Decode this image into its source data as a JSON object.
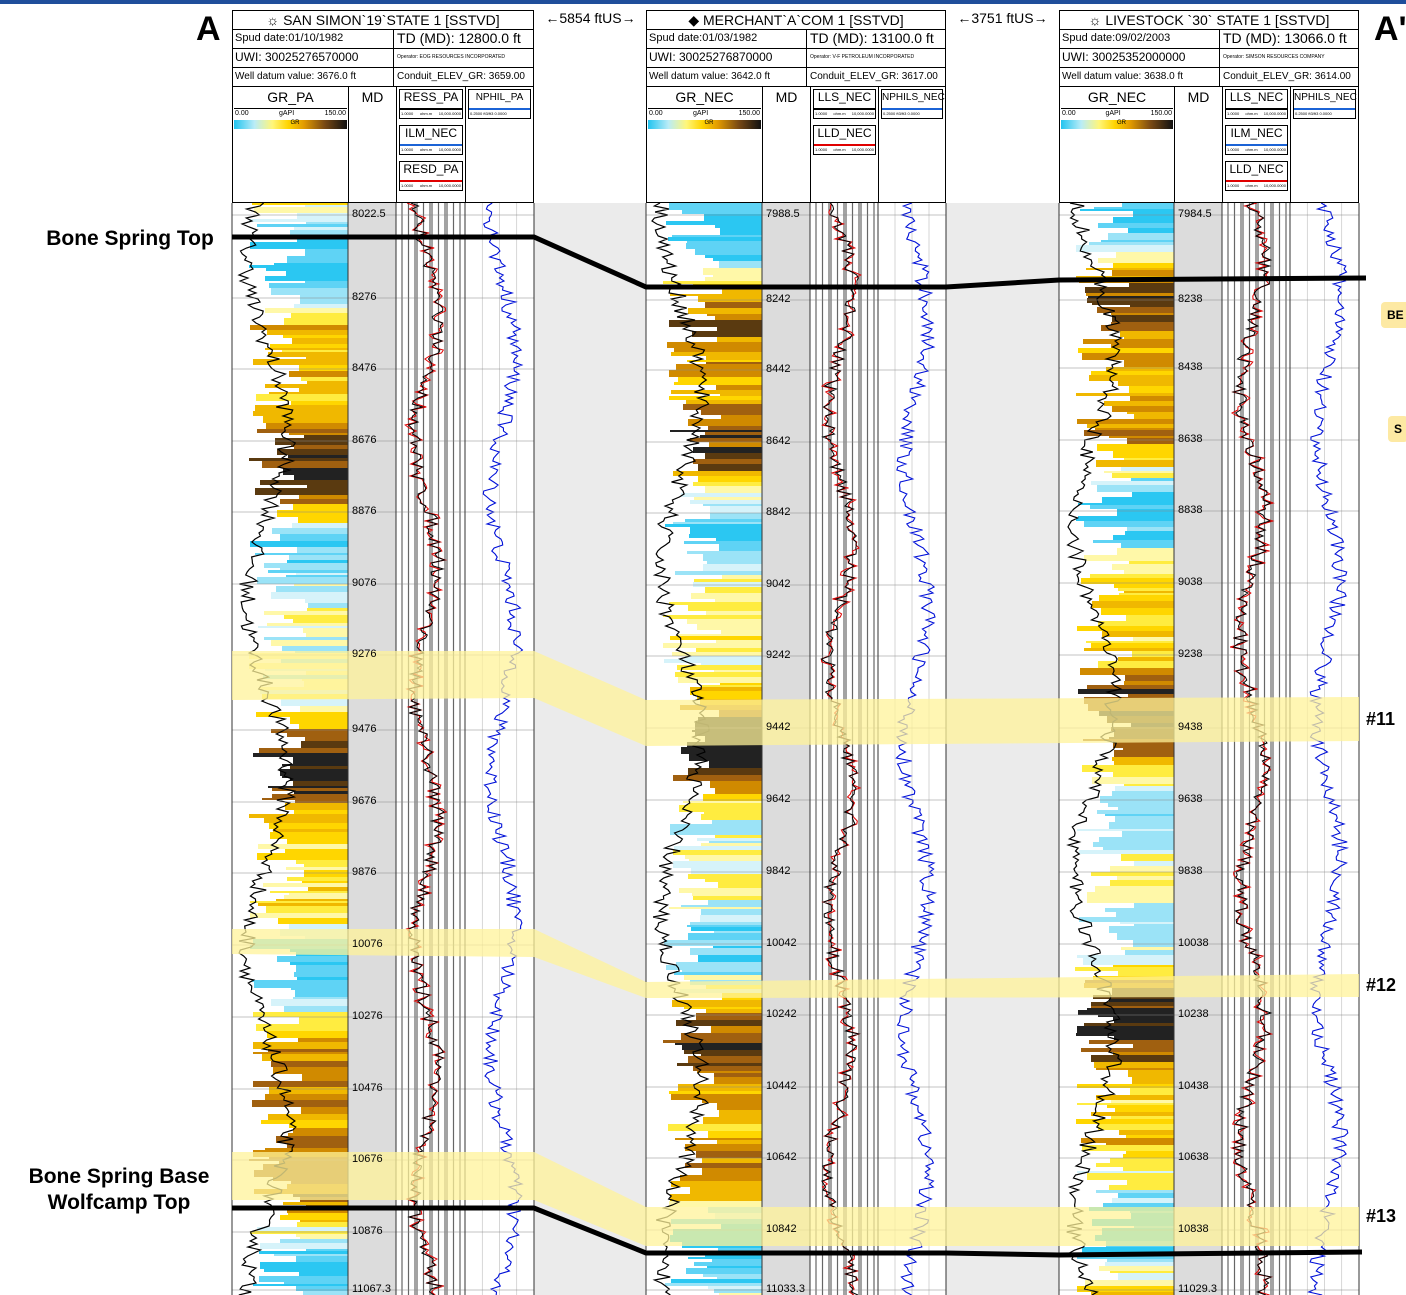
{
  "section": {
    "start_label": "A",
    "end_label": "A'"
  },
  "formations": {
    "top_label": "Bone Spring Top",
    "base_label_line1": "Bone Spring Base",
    "base_label_line2": "Wolfcamp Top"
  },
  "zones": [
    {
      "label": "#11"
    },
    {
      "label": "#12"
    },
    {
      "label": "#13"
    }
  ],
  "badges": [
    {
      "label": "BE"
    },
    {
      "label": "S"
    }
  ],
  "spacings": [
    "5854 ftUS",
    "3751 ftUS"
  ],
  "colors": {
    "gr_cyan": "#2bc7f2",
    "gr_yellow": "#ffe300",
    "gr_brown": "#8a5418",
    "highlight": "#fff39a",
    "res_red": "#e00000",
    "nphi_blue": "#0010d8",
    "gap": "#ebebeb",
    "md_track": "#dcdcdc",
    "header_blue": "#1f4e9b"
  },
  "wells": [
    {
      "title": "SAN SIMON`19`STATE 1 [SSTVD]",
      "spud": "Spud date:01/10/1982",
      "td": "TD (MD):  12800.0 ft",
      "uwi": "UWI: 30025276570000",
      "operator": "Operator: EOG RESOURCES INCORPORATED",
      "datum": "Well datum value: 3676.0 ft",
      "elev": "Conduit_ELEV_GR:  3659.00",
      "gr_name": "GR_PA",
      "gr_min": "0.00",
      "gr_unit": "gAPI",
      "gr_max": "150.00",
      "gr_tag": "GR",
      "md_label": "MD",
      "res_curves": [
        "RESS_PA",
        "ILM_NEC",
        "RESD_PA"
      ],
      "nphi_name": "NPHIL_PA",
      "nphi_scale": "0.2500 ft3/ft3 0.0000",
      "res_scale_min": "1.0000",
      "res_scale_unit": "ohm.m",
      "res_scale_max": "10,000.0000",
      "md_ticks": [
        "8022.5",
        "8276",
        "8476",
        "8676",
        "8876",
        "9076",
        "9276",
        "9476",
        "9676",
        "9876",
        "10076",
        "10276",
        "10476",
        "10676",
        "10876",
        "11067.3"
      ]
    },
    {
      "title": "MERCHANT`A`COM 1 [SSTVD]",
      "spud": "Spud date:01/03/1982",
      "td": "TD (MD):  13100.0 ft",
      "uwi": "UWI: 30025276870000",
      "operator": "Operator: V-F PETROLEUM INCORPORATED",
      "datum": "Well datum value: 3642.0 ft",
      "elev": "Conduit_ELEV_GR:  3617.00",
      "gr_name": "GR_NEC",
      "gr_min": "0.00",
      "gr_unit": "gAPI",
      "gr_max": "150.00",
      "gr_tag": "GR",
      "md_label": "MD",
      "res_curves": [
        "LLS_NEC",
        "LLD_NEC"
      ],
      "nphi_name": "NPHILS_NEC",
      "nphi_scale": "0.2500 ft3/ft3 0.0000",
      "res_scale_min": "1.0000",
      "res_scale_unit": "ohm.m",
      "res_scale_max": "10,000.0000",
      "md_ticks": [
        "7988.5",
        "8242",
        "8442",
        "8642",
        "8842",
        "9042",
        "9242",
        "9442",
        "9642",
        "9842",
        "10042",
        "10242",
        "10442",
        "10642",
        "10842",
        "11033.3"
      ]
    },
    {
      "title": "LIVESTOCK `30` STATE 1 [SSTVD]",
      "spud": "Spud date:09/02/2003",
      "td": "TD (MD):  13066.0 ft",
      "uwi": "UWI: 30025352000000",
      "operator": "Operator: SIMSON RESOURCES COMPANY",
      "datum": "Well datum value: 3638.0 ft",
      "elev": "Conduit_ELEV_GR:  3614.00",
      "gr_name": "GR_NEC",
      "gr_min": "0.00",
      "gr_unit": "gAPI",
      "gr_max": "150.00",
      "gr_tag": "GR",
      "md_label": "MD",
      "res_curves": [
        "LLS_NEC",
        "ILM_NEC",
        "LLD_NEC"
      ],
      "nphi_name": "NPHILS_NEC",
      "nphi_scale": "0.2500 ft3/ft3 0.0000",
      "res_scale_min": "1.0000",
      "res_scale_unit": "ohm.m",
      "res_scale_max": "10,000.0000",
      "md_ticks": [
        "7984.5",
        "8238",
        "8438",
        "8638",
        "8838",
        "9038",
        "9238",
        "9438",
        "9638",
        "9838",
        "10038",
        "10238",
        "10438",
        "10638",
        "10838",
        "11029.3"
      ]
    }
  ]
}
